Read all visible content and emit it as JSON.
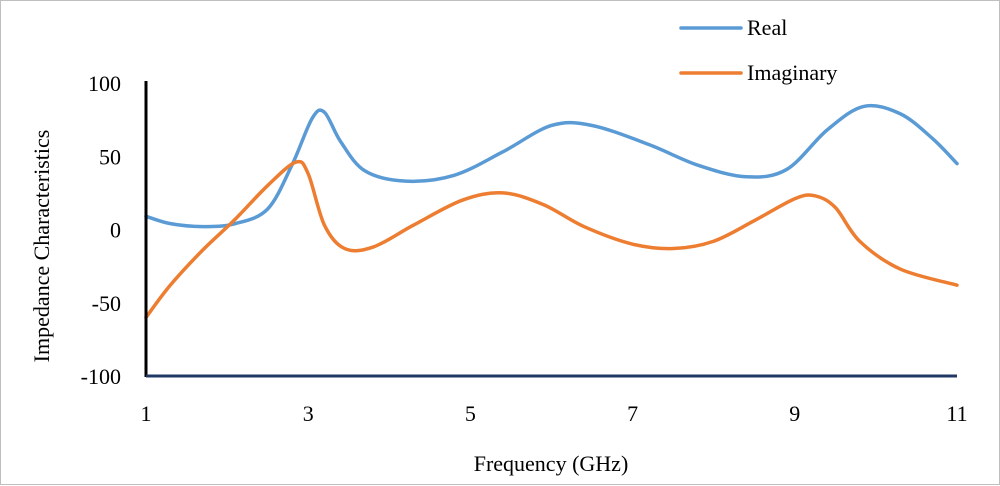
{
  "chart_data": {
    "type": "line",
    "title": "",
    "xlabel": "Frequency (GHz)",
    "ylabel": "Impedance  Characteristics",
    "xlim": [
      1,
      11
    ],
    "ylim": [
      -100,
      100
    ],
    "x_ticks": [
      "1",
      "3",
      "5",
      "7",
      "9",
      "11"
    ],
    "y_ticks": [
      "100",
      "50",
      "0",
      "-50",
      "-100"
    ],
    "x_tick_values": [
      1,
      3,
      5,
      7,
      9,
      11
    ],
    "y_tick_values": [
      100,
      50,
      0,
      -50,
      -100
    ],
    "grid": false,
    "legend_position": "top-right",
    "series": [
      {
        "name": "Real",
        "color": "#5b9bd5",
        "x": [
          1,
          1.3,
          1.7,
          2.1,
          2.5,
          2.8,
          3.05,
          3.2,
          3.4,
          3.7,
          4.2,
          4.8,
          5.4,
          6.0,
          6.5,
          7.2,
          7.8,
          8.4,
          8.9,
          9.4,
          9.85,
          10.3,
          10.7,
          11
        ],
        "y": [
          9,
          4,
          2,
          4,
          14,
          44,
          76,
          80,
          60,
          40,
          33,
          37,
          53,
          71,
          71,
          58,
          44,
          36,
          41,
          68,
          84,
          79,
          62,
          45
        ]
      },
      {
        "name": "Imaginary",
        "color": "#ed7d31",
        "x": [
          1,
          1.3,
          1.7,
          2.1,
          2.5,
          2.85,
          3.0,
          3.2,
          3.45,
          3.8,
          4.3,
          4.9,
          5.4,
          5.9,
          6.4,
          7.0,
          7.5,
          8.0,
          8.5,
          9.0,
          9.25,
          9.5,
          9.8,
          10.3,
          11
        ],
        "y": [
          -60,
          -38,
          -14,
          7,
          30,
          46,
          38,
          3,
          -13,
          -12,
          3,
          20,
          25,
          17,
          2,
          -10,
          -13,
          -8,
          6,
          21,
          23,
          15,
          -8,
          -27,
          -38
        ]
      }
    ]
  }
}
